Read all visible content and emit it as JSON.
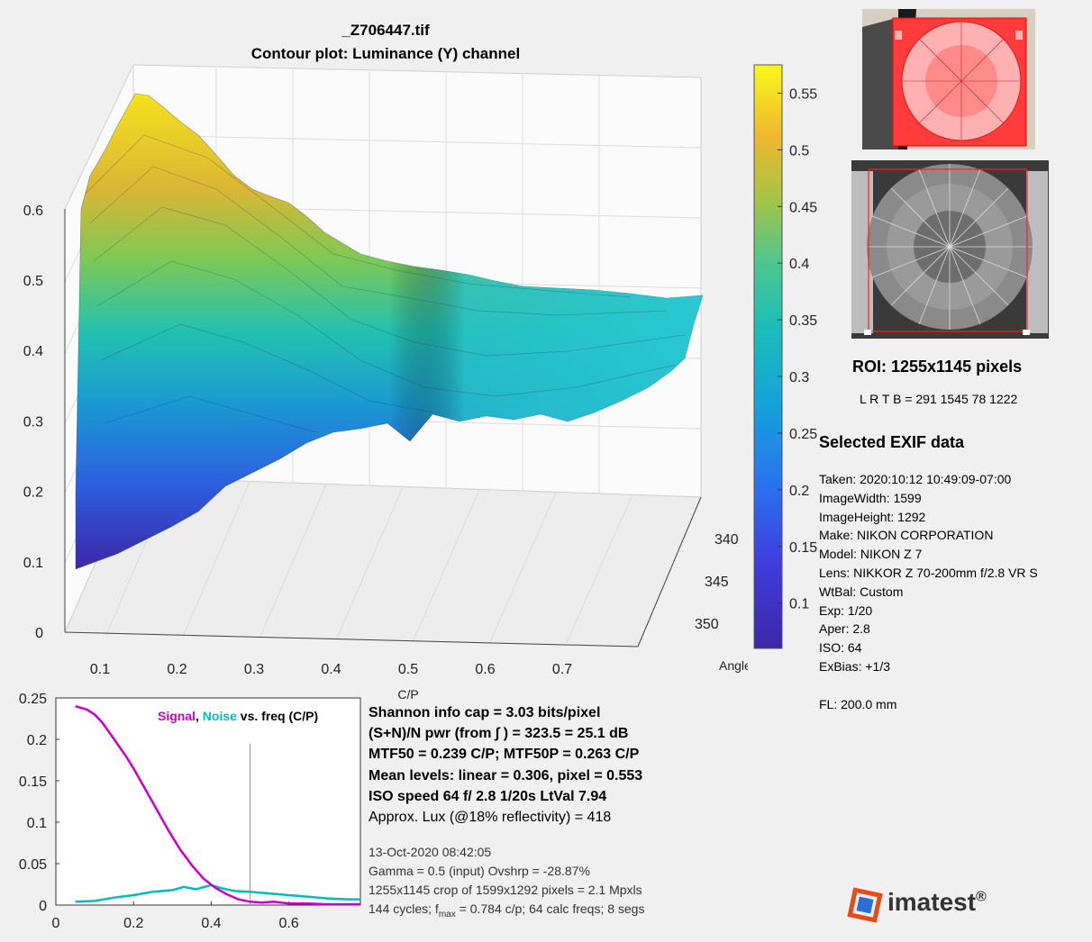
{
  "title_file": "_Z706447.tif",
  "title_plot": "Contour plot:  Luminance (Y) channel",
  "surface3d": {
    "z_ticks": [
      "0",
      "0.1",
      "0.2",
      "0.3",
      "0.4",
      "0.5",
      "0.6"
    ],
    "x_ticks": [
      "0.1",
      "0.2",
      "0.3",
      "0.4",
      "0.5",
      "0.6",
      "0.7"
    ],
    "x_label": "C/P",
    "angle_ticks": [
      "340",
      "345",
      "350"
    ],
    "angle_label": "Angle",
    "angle_unit": "o"
  },
  "colorbar": {
    "ticks": [
      "0.55",
      "0.5",
      "0.45",
      "0.4",
      "0.35",
      "0.3",
      "0.25",
      "0.2",
      "0.15",
      "0.1"
    ],
    "range": [
      0.06,
      0.575
    ]
  },
  "chart_data": {
    "type": "line",
    "title_parts": [
      "Signal",
      ", ",
      "Noise",
      " vs. freq (C/P)"
    ],
    "xlim": [
      0,
      0.784
    ],
    "ylim": [
      0,
      0.25
    ],
    "x_ticks": [
      "0",
      "0.2",
      "0.4",
      "0.6"
    ],
    "y_ticks": [
      "0",
      "0.05",
      "0.1",
      "0.15",
      "0.2",
      "0.25"
    ],
    "vline_x": 0.5,
    "series": [
      {
        "name": "Signal",
        "color": "#cc00cc",
        "x": [
          0.05,
          0.08,
          0.1,
          0.12,
          0.15,
          0.18,
          0.2,
          0.23,
          0.26,
          0.29,
          0.32,
          0.35,
          0.38,
          0.41,
          0.44,
          0.47,
          0.5,
          0.53,
          0.56,
          0.6,
          0.65,
          0.7,
          0.75,
          0.784
        ],
        "y": [
          0.24,
          0.236,
          0.23,
          0.22,
          0.2,
          0.18,
          0.165,
          0.14,
          0.115,
          0.09,
          0.067,
          0.048,
          0.032,
          0.021,
          0.013,
          0.007,
          0.004,
          0.003,
          0.004,
          0.002,
          0.002,
          0.001,
          0.001,
          0.001
        ]
      },
      {
        "name": "Noise",
        "color": "#00bcbc",
        "x": [
          0.05,
          0.1,
          0.15,
          0.2,
          0.25,
          0.3,
          0.33,
          0.36,
          0.4,
          0.43,
          0.46,
          0.5,
          0.55,
          0.6,
          0.65,
          0.7,
          0.75,
          0.784
        ],
        "y": [
          0.004,
          0.005,
          0.009,
          0.012,
          0.016,
          0.018,
          0.022,
          0.019,
          0.024,
          0.02,
          0.017,
          0.016,
          0.014,
          0.012,
          0.01,
          0.008,
          0.007,
          0.007
        ]
      }
    ]
  },
  "stats": {
    "shannon": "Shannon info cap =  3.03 bits/pixel",
    "snr": "(S+N)/N pwr (from ∫ ) = 323.5 = 25.1 dB",
    "mtf": "MTF50 = 0.239 C/P;  MTF50P = 0.263 C/P",
    "mean": "Mean levels:  linear = 0.306,  pixel = 0.553",
    "iso": "ISO speed  64   f/ 2.8    1/20s   LtVal 7.94",
    "lux": "Approx. Lux (@18% reflectivity) = 418",
    "date": "13-Oct-2020 08:42:05",
    "gamma": "Gamma = 0.5 (input)  Ovshrp = -28.87%",
    "crop": "1255x1145 crop of 1599x1292 pixels = 2.1 Mpxls",
    "cycles_a": "144 cycles; f",
    "cycles_sub": "max",
    "cycles_b": " = 0.784 c/p;  64 calc freqs;  8 segs"
  },
  "roi": {
    "title": "ROI:  1255x1145 pixels",
    "lrtb": "L R  T B = 291 1545  78 1222"
  },
  "exif": {
    "title": "Selected EXIF data",
    "lines": [
      "Taken: 2020:10:12 10:49:09-07:00",
      "ImageWidth:  1599",
      "ImageHeight:  1292",
      "Make:  NIKON CORPORATION",
      "Model: NIKON Z 7",
      "Lens:  NIKKOR Z 70-200mm f/2.8 VR S",
      "WtBal:  Custom",
      "Exp:   1/20",
      "Aper:  2.8",
      "ISO:   64",
      "ExBias:  +1/3",
      "",
      "FL:  200.0 mm"
    ]
  },
  "logo": {
    "text": "imatest",
    "reg": "®"
  },
  "colors": {
    "signal": "#cc00cc",
    "noise": "#00bcbc",
    "vline": "#8888dd",
    "bg": "#f0f0f0"
  }
}
